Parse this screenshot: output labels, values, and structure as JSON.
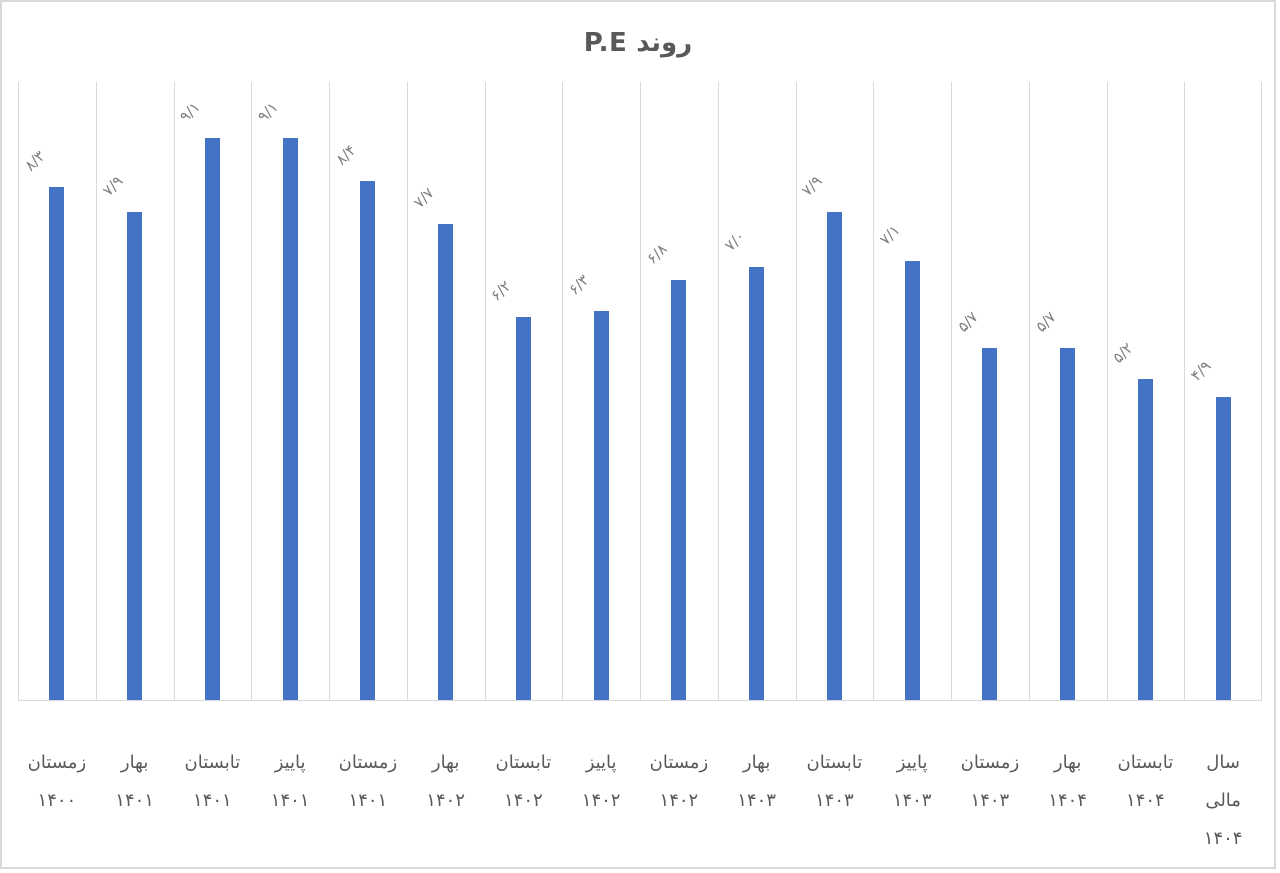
{
  "chart_data": {
    "type": "bar",
    "title": "روند P.E",
    "categories": [
      "زمستان\n۱۴۰۰",
      "بهار\n۱۴۰۱",
      "تابستان\n۱۴۰۱",
      "پاییز\n۱۴۰۱",
      "زمستان\n۱۴۰۱",
      "بهار\n۱۴۰۲",
      "تابستان\n۱۴۰۲",
      "پاییز\n۱۴۰۲",
      "زمستان\n۱۴۰۲",
      "بهار\n۱۴۰۳",
      "تابستان\n۱۴۰۳",
      "پاییز\n۱۴۰۳",
      "زمستان\n۱۴۰۳",
      "بهار\n۱۴۰۴",
      "تابستان\n۱۴۰۴",
      "سال\nمالی\n۱۴۰۴"
    ],
    "values": [
      8.3,
      7.9,
      9.1,
      9.1,
      8.4,
      7.7,
      6.2,
      6.3,
      6.8,
      7.0,
      7.9,
      7.1,
      5.7,
      5.7,
      5.2,
      4.9
    ],
    "value_labels": [
      "۸/۳",
      "۷/۹",
      "۹/۱",
      "۹/۱",
      "۸/۴",
      "۷/۷",
      "۶/۲",
      "۶/۳",
      "۶/۸",
      "۷/۰",
      "۷/۹",
      "۷/۱",
      "۵/۷",
      "۵/۷",
      "۵/۲",
      "۴/۹"
    ],
    "xlabel": "",
    "ylabel": "",
    "ylim": [
      0,
      10
    ],
    "grid": "vertical category gridlines only",
    "legend": "none",
    "value_label_rotation_deg": -45,
    "colors": {
      "bar": "#4472C4",
      "gridline": "#D9D9D9",
      "axis_line": "#D9D9D9",
      "border": "#D9D9D9",
      "background": "#FFFFFF",
      "title_text": "#595959",
      "category_label_text": "#595959",
      "value_label_text": "#7F7F7F"
    }
  }
}
